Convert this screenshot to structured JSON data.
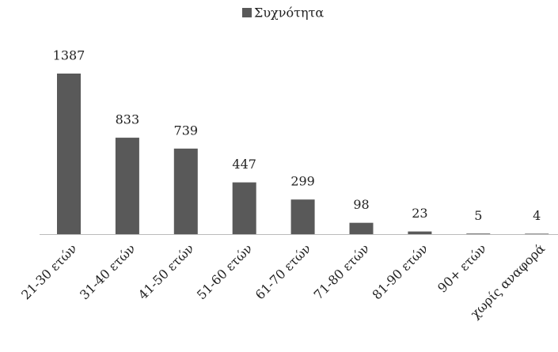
{
  "chart_data": {
    "type": "bar",
    "categories": [
      "21-30 ετών",
      "31-40 ετών",
      "41-50 ετών",
      "51-60 ετών",
      "61-70 ετών",
      "71-80 ετών",
      "81-90 ετών",
      "90+ ετών",
      "χωρίς αναφορά"
    ],
    "series": [
      {
        "name": "Συχνότητα",
        "color": "#595959",
        "values": [
          1387,
          833,
          739,
          447,
          299,
          98,
          23,
          5,
          4
        ]
      }
    ],
    "legend": "top"
  }
}
